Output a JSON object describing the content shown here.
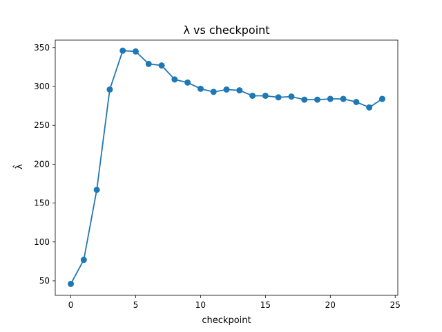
{
  "chart_data": {
    "type": "line",
    "title": "λ vs checkpoint",
    "xlabel": "checkpoint",
    "ylabel": "λ̂",
    "xlim": [
      -1.2,
      25.2
    ],
    "ylim": [
      31.3,
      359.6
    ],
    "xticks": [
      0,
      5,
      10,
      15,
      20,
      25
    ],
    "yticks": [
      50,
      100,
      150,
      200,
      250,
      300,
      350
    ],
    "grid": false,
    "series": [
      {
        "color": "#1f77b4",
        "marker": "circle",
        "x": [
          0,
          1,
          2,
          3,
          4,
          5,
          6,
          7,
          8,
          9,
          10,
          11,
          12,
          13,
          14,
          15,
          16,
          17,
          18,
          19,
          20,
          21,
          22,
          23,
          24
        ],
        "y": [
          46,
          77,
          167,
          296,
          346,
          345,
          329,
          327,
          309,
          305,
          297,
          293,
          296,
          295,
          288,
          288,
          286,
          287,
          283,
          283,
          284,
          284,
          280,
          273,
          284
        ]
      }
    ]
  }
}
